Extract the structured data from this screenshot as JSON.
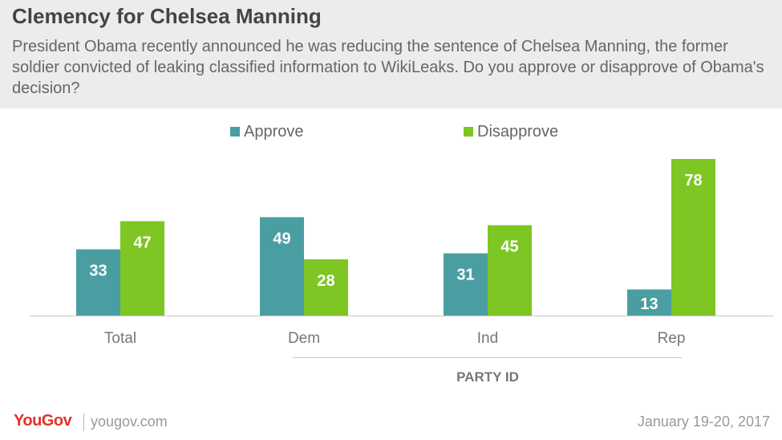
{
  "title": "Clemency for Chelsea Manning",
  "subtitle": "President Obama recently announced he was reducing the sentence of Chelsea Manning, the former soldier convicted of leaking classified information to WikiLeaks. Do you approve or disapprove of Obama's decision?",
  "colors": {
    "approve": "#4a9ea1",
    "disapprove": "#7ec623",
    "header_bg": "#ececec"
  },
  "footer": {
    "logo": "YouGov",
    "site": "yougov.com",
    "date": "January 19-20, 2017"
  },
  "chart_data": {
    "type": "bar",
    "categories": [
      "Total",
      "Dem",
      "Ind",
      "Rep"
    ],
    "series": [
      {
        "name": "Approve",
        "values": [
          33,
          49,
          31,
          13
        ]
      },
      {
        "name": "Disapprove",
        "values": [
          47,
          28,
          45,
          78
        ]
      }
    ],
    "group_label": "PARTY ID",
    "group_applies_to": [
      "Dem",
      "Ind",
      "Rep"
    ],
    "legend_position": "top",
    "grid": false,
    "ylim": [
      0,
      80
    ]
  }
}
